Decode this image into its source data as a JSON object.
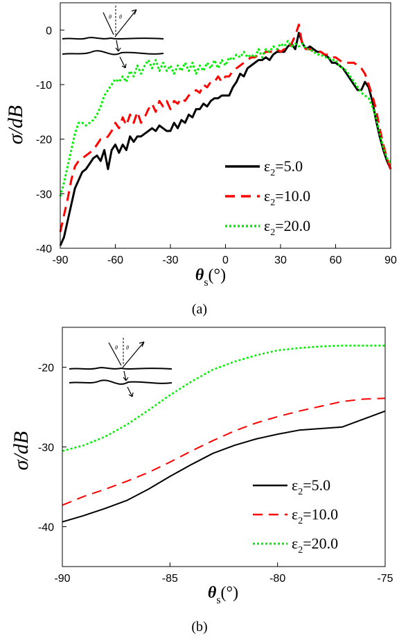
{
  "chart_data": [
    {
      "id": "a",
      "type": "line",
      "caption": "(a)",
      "ylabel": "σ/dB",
      "xlabel_main": "θ",
      "xlabel_sub": "s",
      "xlabel_unit": "(°)",
      "xlim": [
        -90,
        90
      ],
      "ylim": [
        -40,
        5
      ],
      "xticks": [
        -90,
        -60,
        -30,
        0,
        30,
        60,
        90
      ],
      "yticks": [
        -40,
        -30,
        -20,
        -10,
        0
      ],
      "legend_position": "lower-right",
      "series": [
        {
          "name": "ε2=5.0",
          "name_main": "ε",
          "name_sub": "2",
          "name_rest": "=5.0",
          "color": "#000000",
          "dash": "solid",
          "width": 3,
          "x": [
            -90,
            -88,
            -86,
            -84,
            -82,
            -80,
            -78,
            -76,
            -74,
            -72,
            -70,
            -68,
            -66,
            -64,
            -62,
            -60,
            -58,
            -56,
            -54,
            -52,
            -50,
            -48,
            -46,
            -44,
            -42,
            -40,
            -38,
            -36,
            -34,
            -32,
            -30,
            -28,
            -26,
            -24,
            -22,
            -20,
            -18,
            -16,
            -14,
            -12,
            -10,
            -8,
            -6,
            -4,
            -2,
            0,
            2,
            4,
            6,
            8,
            10,
            12,
            14,
            16,
            18,
            20,
            22,
            24,
            26,
            28,
            30,
            32,
            34,
            36,
            38,
            40,
            42,
            44,
            46,
            48,
            50,
            52,
            54,
            56,
            58,
            60,
            62,
            64,
            66,
            68,
            70,
            72,
            74,
            76,
            78,
            80,
            82,
            84,
            86,
            88,
            90
          ],
          "y": [
            -39.5,
            -38,
            -35,
            -32,
            -29,
            -27.5,
            -26,
            -25.5,
            -24.5,
            -23.5,
            -23,
            -24,
            -22,
            -25.5,
            -22,
            -21,
            -22.5,
            -21,
            -22,
            -19.5,
            -20.5,
            -19.5,
            -19.5,
            -19,
            -18.5,
            -18,
            -18.5,
            -17.5,
            -18,
            -18.5,
            -18.5,
            -17,
            -18,
            -16.5,
            -17,
            -15.5,
            -16,
            -14.5,
            -14.5,
            -13.5,
            -14,
            -13,
            -12.5,
            -12.5,
            -12,
            -12,
            -12,
            -10.5,
            -9.5,
            -8,
            -8.5,
            -7,
            -6.5,
            -6,
            -5.5,
            -5.5,
            -5,
            -5.5,
            -4.5,
            -4,
            -4,
            -4,
            -3,
            -2.5,
            -3.5,
            -0.5,
            -2.5,
            -3.5,
            -3,
            -3.5,
            -4,
            -4,
            -4.5,
            -5,
            -6,
            -6,
            -6.5,
            -7,
            -8,
            -9,
            -10,
            -11,
            -11,
            -9.5,
            -10.5,
            -13,
            -16.5,
            -19.5,
            -22,
            -24,
            -25.5
          ]
        },
        {
          "name": "ε2=10.0",
          "name_main": "ε",
          "name_sub": "2",
          "name_rest": "=10.0",
          "color": "#ff0000",
          "dash": "dashed",
          "width": 3,
          "x": [
            -90,
            -88,
            -86,
            -84,
            -82,
            -80,
            -78,
            -76,
            -74,
            -72,
            -70,
            -68,
            -66,
            -64,
            -62,
            -60,
            -58,
            -56,
            -54,
            -52,
            -50,
            -48,
            -46,
            -44,
            -42,
            -40,
            -38,
            -36,
            -34,
            -32,
            -30,
            -28,
            -26,
            -24,
            -22,
            -20,
            -18,
            -16,
            -14,
            -12,
            -10,
            -8,
            -6,
            -4,
            -2,
            0,
            2,
            4,
            6,
            8,
            10,
            12,
            14,
            16,
            18,
            20,
            22,
            24,
            26,
            28,
            30,
            32,
            34,
            36,
            38,
            40,
            42,
            44,
            46,
            48,
            50,
            52,
            54,
            56,
            58,
            60,
            62,
            64,
            66,
            68,
            70,
            72,
            74,
            76,
            78,
            80,
            82,
            84,
            86,
            88,
            90
          ],
          "y": [
            -37,
            -34,
            -31,
            -27.5,
            -25,
            -24,
            -23.5,
            -23,
            -22.5,
            -22,
            -21,
            -20,
            -20,
            -19.5,
            -18.5,
            -17,
            -18,
            -16,
            -17.5,
            -15.5,
            -17,
            -15,
            -17,
            -16,
            -14.5,
            -13.5,
            -15,
            -13,
            -14,
            -13,
            -14.5,
            -13,
            -13.5,
            -12.5,
            -13,
            -12,
            -11.5,
            -11,
            -11.5,
            -10,
            -10.5,
            -9.5,
            -9.5,
            -8.5,
            -9.5,
            -8.5,
            -8.5,
            -7.5,
            -7,
            -6.5,
            -6,
            -5.5,
            -5,
            -5,
            -4.5,
            -4.5,
            -4,
            -4,
            -4,
            -3.5,
            -4,
            -3.5,
            -3.5,
            -2.5,
            -1,
            1,
            -3,
            -3.5,
            -3.5,
            -4,
            -4,
            -4,
            -4.5,
            -4.5,
            -5,
            -5,
            -5.5,
            -6,
            -6,
            -6,
            -6,
            -6.5,
            -7,
            -8,
            -10,
            -12,
            -14.5,
            -18,
            -21,
            -23.5,
            -25.5
          ]
        },
        {
          "name": "ε2=20.0",
          "name_main": "ε",
          "name_sub": "2",
          "name_rest": "=20.0",
          "color": "#00ee00",
          "dash": "dotted",
          "width": 3,
          "x": [
            -90,
            -88,
            -86,
            -84,
            -82,
            -80,
            -78,
            -76,
            -74,
            -72,
            -70,
            -68,
            -66,
            -64,
            -62,
            -60,
            -58,
            -56,
            -54,
            -52,
            -50,
            -48,
            -46,
            -44,
            -42,
            -40,
            -38,
            -36,
            -34,
            -32,
            -30,
            -28,
            -26,
            -24,
            -22,
            -20,
            -18,
            -16,
            -14,
            -12,
            -10,
            -8,
            -6,
            -4,
            -2,
            0,
            2,
            4,
            6,
            8,
            10,
            12,
            14,
            16,
            18,
            20,
            22,
            24,
            26,
            28,
            30,
            32,
            34,
            36,
            38,
            40,
            42,
            44,
            46,
            48,
            50,
            52,
            54,
            56,
            58,
            60,
            62,
            64,
            66,
            68,
            70,
            72,
            74,
            76,
            78,
            80,
            82,
            84,
            86,
            88,
            90
          ],
          "y": [
            -30.5,
            -28,
            -25,
            -22,
            -19,
            -17,
            -17,
            -17.5,
            -17,
            -16.5,
            -15.5,
            -14,
            -12,
            -11,
            -10,
            -9,
            -9.5,
            -8.5,
            -9.5,
            -7.5,
            -8.5,
            -6.5,
            -8,
            -6.5,
            -5.5,
            -7,
            -5.5,
            -7.5,
            -6,
            -7.5,
            -6.5,
            -8,
            -6.5,
            -7.5,
            -6,
            -7.5,
            -6,
            -8,
            -6.5,
            -7.5,
            -6,
            -7,
            -5.5,
            -7,
            -5.5,
            -6.5,
            -5,
            -5.5,
            -4.5,
            -5,
            -4,
            -5,
            -4.5,
            -5,
            -3.5,
            -5,
            -3.5,
            -4,
            -3,
            -3.5,
            -2.5,
            -3,
            -2,
            -3,
            -2.5,
            -3,
            -2.5,
            -3.5,
            -3.5,
            -4,
            -4.5,
            -4.5,
            -5,
            -5,
            -5.5,
            -5.5,
            -6.5,
            -7,
            -7.5,
            -8.5,
            -9.5,
            -10.5,
            -11.5,
            -12,
            -12.5,
            -14,
            -16,
            -19,
            -21.5,
            -23.5,
            -24.5
          ]
        }
      ]
    },
    {
      "id": "b",
      "type": "line",
      "caption": "(b)",
      "ylabel": "σ/dB",
      "xlabel_main": "θ",
      "xlabel_sub": "s",
      "xlabel_unit": "(°)",
      "xlim": [
        -90,
        -75
      ],
      "ylim": [
        -45,
        -15
      ],
      "xticks": [
        -90,
        -85,
        -80,
        -75
      ],
      "yticks": [
        -40,
        -30,
        -20
      ],
      "legend_position": "lower-right",
      "series": [
        {
          "name": "ε2=5.0",
          "name_main": "ε",
          "name_sub": "2",
          "name_rest": "=5.0",
          "color": "#000000",
          "dash": "solid",
          "width": 2,
          "x": [
            -90,
            -89,
            -88,
            -87,
            -86,
            -85,
            -84,
            -83,
            -82,
            -81,
            -80,
            -79,
            -78,
            -77,
            -76,
            -75
          ],
          "y": [
            -39.4,
            -38.6,
            -37.7,
            -36.7,
            -35.3,
            -33.7,
            -32.2,
            -30.8,
            -29.8,
            -29.0,
            -28.4,
            -27.9,
            -27.7,
            -27.5,
            -26.5,
            -25.5
          ]
        },
        {
          "name": "ε2=10.0",
          "name_main": "ε",
          "name_sub": "2",
          "name_rest": "=10.0",
          "color": "#ff0000",
          "dash": "dashed",
          "width": 2,
          "x": [
            -90,
            -89,
            -88,
            -87,
            -86,
            -85,
            -84,
            -83,
            -82,
            -81,
            -80,
            -79,
            -78,
            -77,
            -76,
            -75
          ],
          "y": [
            -37.3,
            -36.2,
            -35.3,
            -34.3,
            -33.2,
            -31.9,
            -30.5,
            -29.2,
            -28.0,
            -27.0,
            -26.2,
            -25.5,
            -24.9,
            -24.3,
            -24.0,
            -23.9
          ]
        },
        {
          "name": "ε2=20.0",
          "name_main": "ε",
          "name_sub": "2",
          "name_rest": "=20.0",
          "color": "#00ee00",
          "dash": "dotted",
          "width": 2.5,
          "x": [
            -90,
            -89,
            -88,
            -87,
            -86,
            -85,
            -84,
            -83,
            -82,
            -81,
            -80,
            -79,
            -78,
            -77,
            -76,
            -75
          ],
          "y": [
            -30.5,
            -29.8,
            -28.7,
            -27.2,
            -25.4,
            -23.5,
            -21.8,
            -20.3,
            -19.3,
            -18.5,
            -17.9,
            -17.6,
            -17.4,
            -17.3,
            -17.3,
            -17.3
          ]
        }
      ]
    }
  ]
}
